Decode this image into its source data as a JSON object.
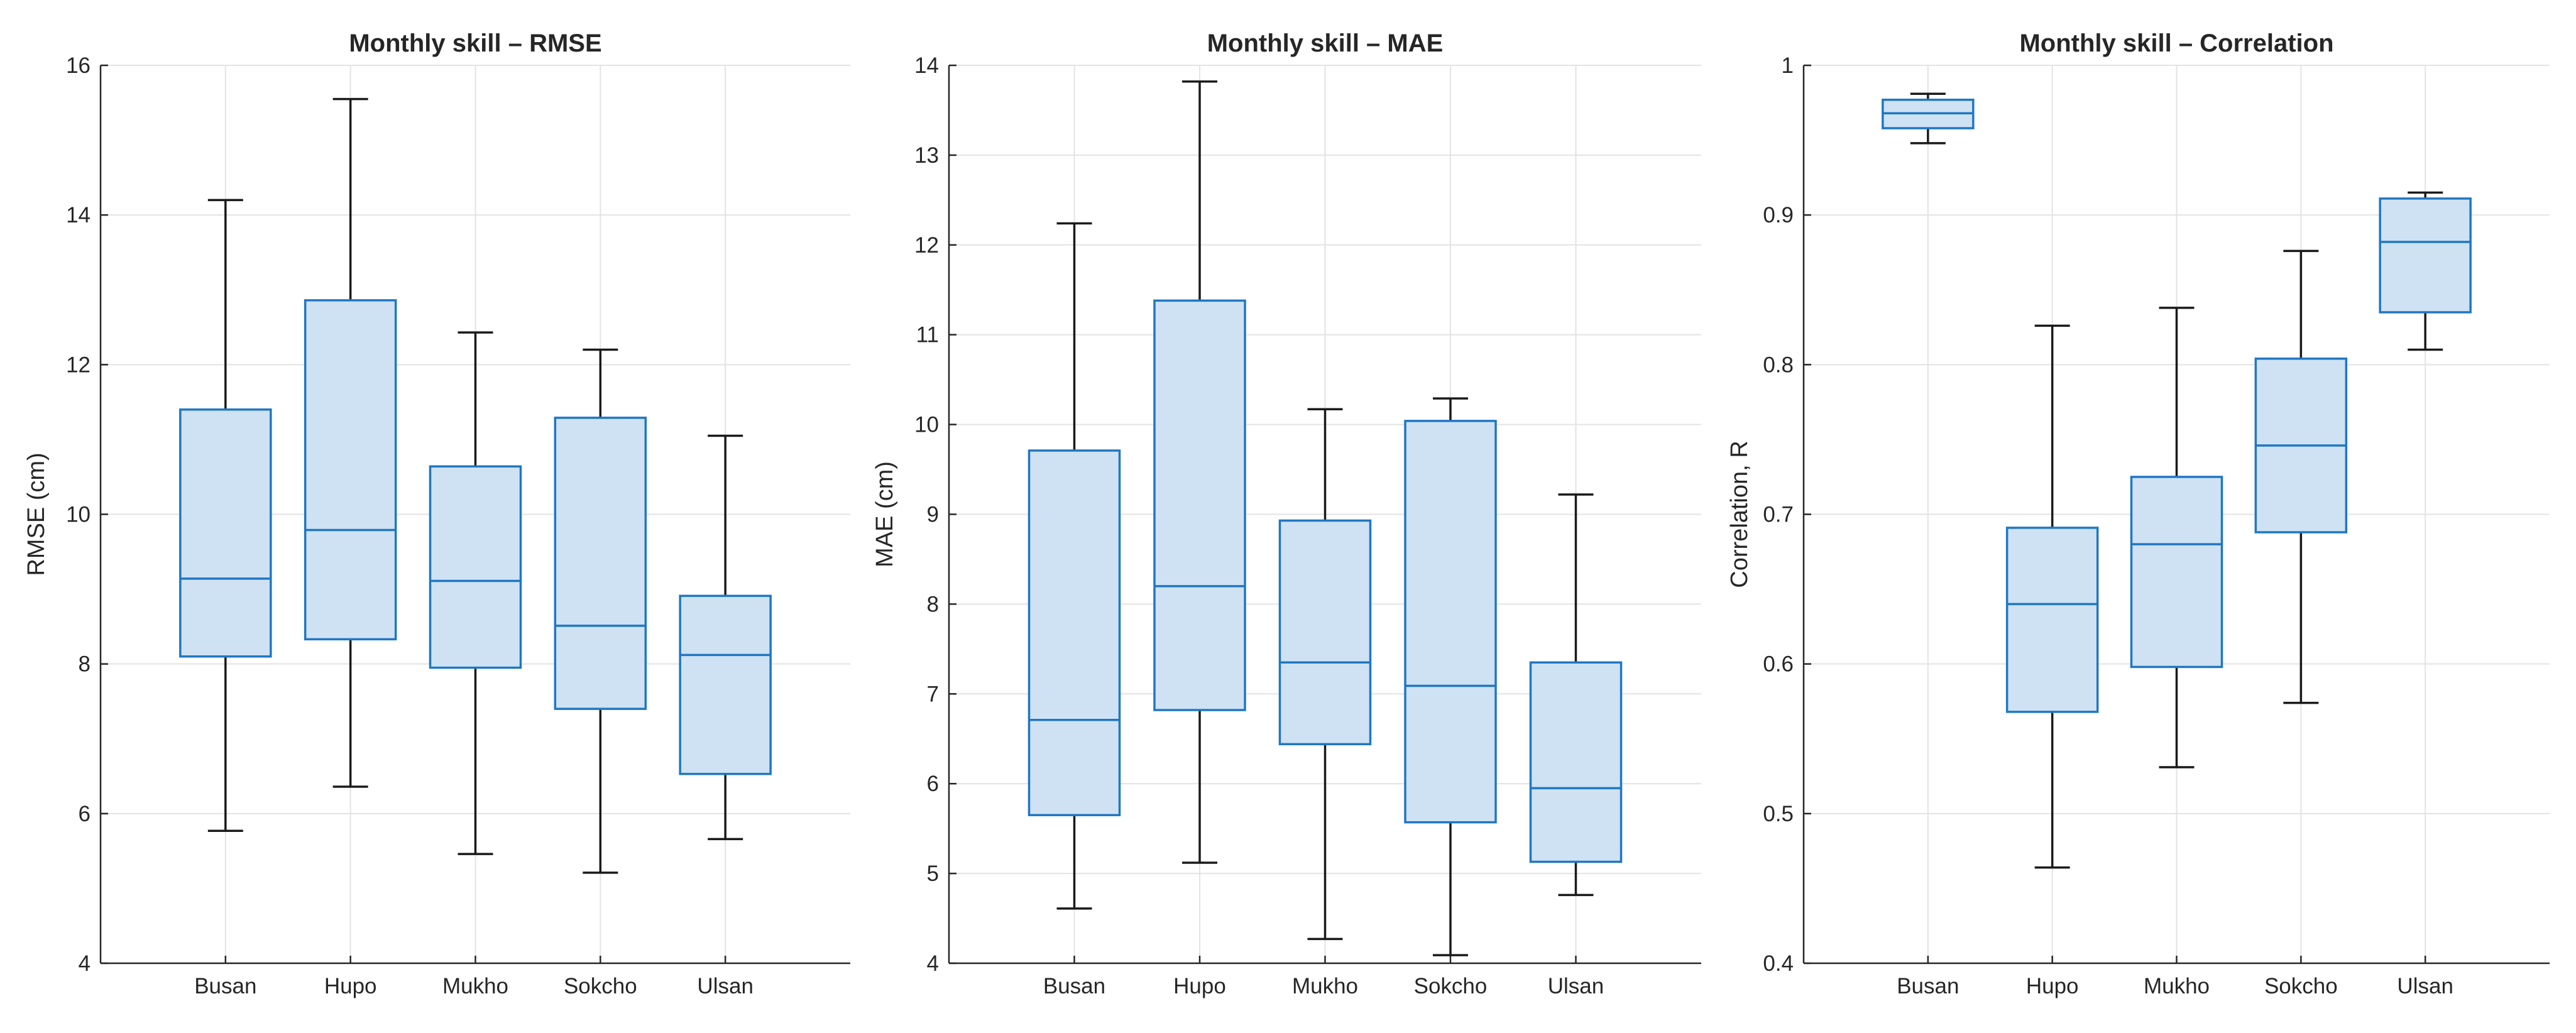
{
  "colors": {
    "box_fill": "#cfe2f3",
    "box_edge": "#1f77c4",
    "whisker": "#1a1a1a",
    "axis": "#262626",
    "grid": "#e3e3e3"
  },
  "chart_data": [
    {
      "type": "boxplot",
      "title": "Monthly skill – RMSE",
      "xlabel": "",
      "ylabel": "RMSE (cm)",
      "ylim": [
        4,
        16
      ],
      "yticks": [
        4,
        6,
        8,
        10,
        12,
        14,
        16
      ],
      "ytick_labels": [
        "4",
        "6",
        "8",
        "10",
        "12",
        "14",
        "16"
      ],
      "grid": true,
      "categories": [
        "Busan",
        "Hupo",
        "Mukho",
        "Sokcho",
        "Ulsan"
      ],
      "boxes": [
        {
          "whisker_low": 5.77,
          "q1": 8.1,
          "median": 9.14,
          "q3": 11.4,
          "whisker_high": 14.2
        },
        {
          "whisker_low": 6.36,
          "q1": 8.33,
          "median": 9.79,
          "q3": 12.86,
          "whisker_high": 15.55
        },
        {
          "whisker_low": 5.46,
          "q1": 7.95,
          "median": 9.11,
          "q3": 10.64,
          "whisker_high": 12.43
        },
        {
          "whisker_low": 5.21,
          "q1": 7.4,
          "median": 8.51,
          "q3": 11.29,
          "whisker_high": 12.2
        },
        {
          "whisker_low": 5.66,
          "q1": 6.53,
          "median": 8.12,
          "q3": 8.91,
          "whisker_high": 11.05
        }
      ]
    },
    {
      "type": "boxplot",
      "title": "Monthly skill – MAE",
      "xlabel": "",
      "ylabel": "MAE (cm)",
      "ylim": [
        4,
        14
      ],
      "yticks": [
        4,
        5,
        6,
        7,
        8,
        9,
        10,
        11,
        12,
        13,
        14
      ],
      "ytick_labels": [
        "4",
        "5",
        "6",
        "7",
        "8",
        "9",
        "10",
        "11",
        "12",
        "13",
        "14"
      ],
      "grid": true,
      "categories": [
        "Busan",
        "Hupo",
        "Mukho",
        "Sokcho",
        "Ulsan"
      ],
      "boxes": [
        {
          "whisker_low": 4.61,
          "q1": 5.65,
          "median": 6.71,
          "q3": 9.71,
          "whisker_high": 12.24
        },
        {
          "whisker_low": 5.12,
          "q1": 6.82,
          "median": 8.2,
          "q3": 11.38,
          "whisker_high": 13.82
        },
        {
          "whisker_low": 4.27,
          "q1": 6.44,
          "median": 7.35,
          "q3": 8.93,
          "whisker_high": 10.17
        },
        {
          "whisker_low": 4.09,
          "q1": 5.57,
          "median": 7.09,
          "q3": 10.04,
          "whisker_high": 10.29
        },
        {
          "whisker_low": 4.76,
          "q1": 5.13,
          "median": 5.95,
          "q3": 7.35,
          "whisker_high": 9.22
        }
      ]
    },
    {
      "type": "boxplot",
      "title": "Monthly skill – Correlation",
      "xlabel": "",
      "ylabel": "Correlation, R",
      "ylim": [
        0.4,
        1.0
      ],
      "yticks": [
        0.4,
        0.5,
        0.6,
        0.7,
        0.8,
        0.9,
        1.0
      ],
      "ytick_labels": [
        "0.4",
        "0.5",
        "0.6",
        "0.7",
        "0.8",
        "0.9",
        "1"
      ],
      "grid": true,
      "categories": [
        "Busan",
        "Hupo",
        "Mukho",
        "Sokcho",
        "Ulsan"
      ],
      "boxes": [
        {
          "whisker_low": 0.948,
          "q1": 0.958,
          "median": 0.968,
          "q3": 0.977,
          "whisker_high": 0.981
        },
        {
          "whisker_low": 0.464,
          "q1": 0.568,
          "median": 0.64,
          "q3": 0.691,
          "whisker_high": 0.826
        },
        {
          "whisker_low": 0.531,
          "q1": 0.598,
          "median": 0.68,
          "q3": 0.725,
          "whisker_high": 0.838
        },
        {
          "whisker_low": 0.574,
          "q1": 0.688,
          "median": 0.746,
          "q3": 0.804,
          "whisker_high": 0.876
        },
        {
          "whisker_low": 0.81,
          "q1": 0.835,
          "median": 0.882,
          "q3": 0.911,
          "whisker_high": 0.915
        }
      ]
    }
  ]
}
